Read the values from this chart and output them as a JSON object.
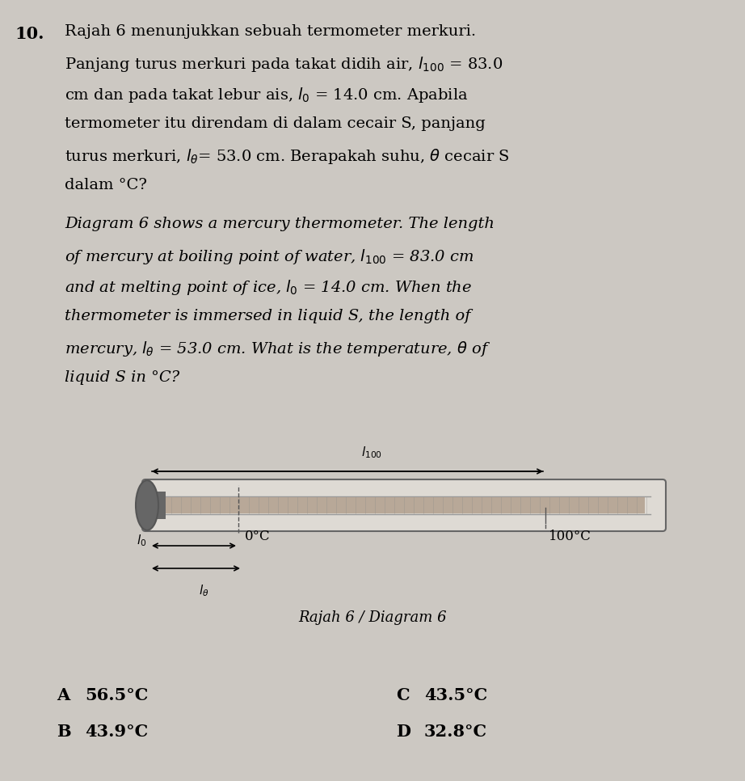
{
  "bg_color": "#ccc8c2",
  "question_number": "10.",
  "malay_lines": [
    "Rajah 6 menunjukkan sebuah termometer merkuri.",
    "Panjang turus merkuri pada takat didih air, $l_{100}$ = 83.0",
    "cm dan pada takat lebur ais, $l_0$ = 14.0 cm. Apabila",
    "termometer itu direndam di dalam cecair S, panjang",
    "turus merkuri, $l_\\theta$= 53.0 cm. Berapakah suhu, $\\theta$ cecair S",
    "dalam °C?"
  ],
  "english_lines": [
    "Diagram 6 shows a mercury thermometer. The length",
    "of mercury at boiling point of water, $l_{100}$ = 83.0 cm",
    "and at melting point of ice, $l_0$ = 14.0 cm. When the",
    "thermometer is immersed in liquid S, the length of",
    "mercury, $l_\\theta$ = 53.0 cm. What is the temperature, $\\theta$ of",
    "liquid S in °C?"
  ],
  "diagram_label": "Rajah 6 / Diagram 6",
  "choices": [
    {
      "label": "A",
      "text": "56.5°C",
      "col": 0
    },
    {
      "label": "B",
      "text": "43.9°C",
      "col": 0
    },
    {
      "label": "C",
      "text": "43.5°C",
      "col": 1
    },
    {
      "label": "D",
      "text": "32.8°C",
      "col": 1
    }
  ]
}
